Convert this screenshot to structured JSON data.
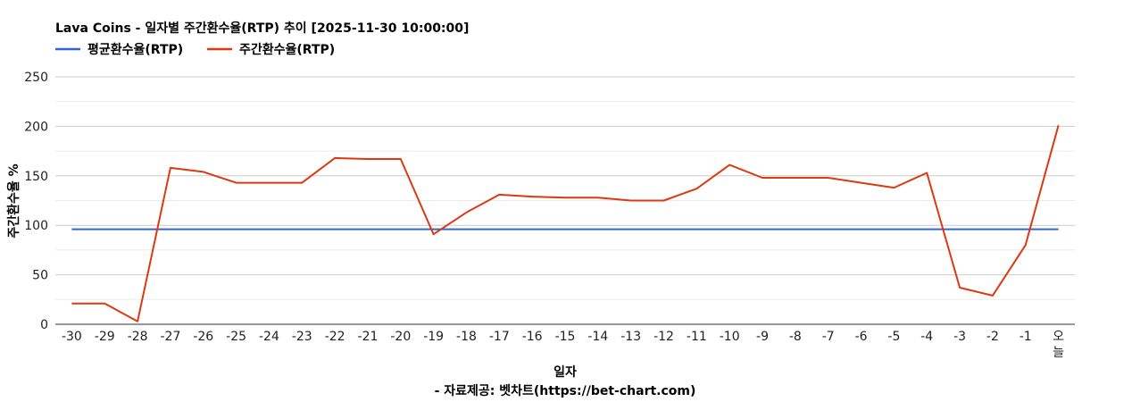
{
  "chart_data": {
    "type": "line",
    "title": "Lava Coins - 일자별 주간환수율(RTP) 추이 [2025-11-30 10:00:00]",
    "xlabel": "일자",
    "ylabel": "주간환수율 %",
    "source": "- 자료제공: 벳차트(https://bet-chart.com)",
    "legend_position": "top-left",
    "grid": true,
    "ylim": [
      0,
      250
    ],
    "yticks": [
      "0",
      "50",
      "100",
      "150",
      "200",
      "250"
    ],
    "categories": [
      "-30",
      "-29",
      "-28",
      "-27",
      "-26",
      "-25",
      "-24",
      "-23",
      "-22",
      "-21",
      "-20",
      "-19",
      "-18",
      "-17",
      "-16",
      "-15",
      "-14",
      "-13",
      "-12",
      "-11",
      "-10",
      "-9",
      "-8",
      "-7",
      "-6",
      "-5",
      "-4",
      "-3",
      "-2",
      "-1",
      "오늘"
    ],
    "series": [
      {
        "name": "평균환수율(RTP)",
        "color": "#3366cc",
        "values": [
          96,
          96,
          96,
          96,
          96,
          96,
          96,
          96,
          96,
          96,
          96,
          96,
          96,
          96,
          96,
          96,
          96,
          96,
          96,
          96,
          96,
          96,
          96,
          96,
          96,
          96,
          96,
          96,
          96,
          96,
          96
        ]
      },
      {
        "name": "주간환수율(RTP)",
        "color": "#dc3912",
        "values": [
          21,
          21,
          3,
          158,
          154,
          143,
          143,
          143,
          168,
          167,
          167,
          91,
          113,
          131,
          129,
          128,
          128,
          125,
          125,
          137,
          161,
          148,
          148,
          148,
          143,
          138,
          153,
          37,
          29,
          80,
          201
        ]
      }
    ]
  }
}
